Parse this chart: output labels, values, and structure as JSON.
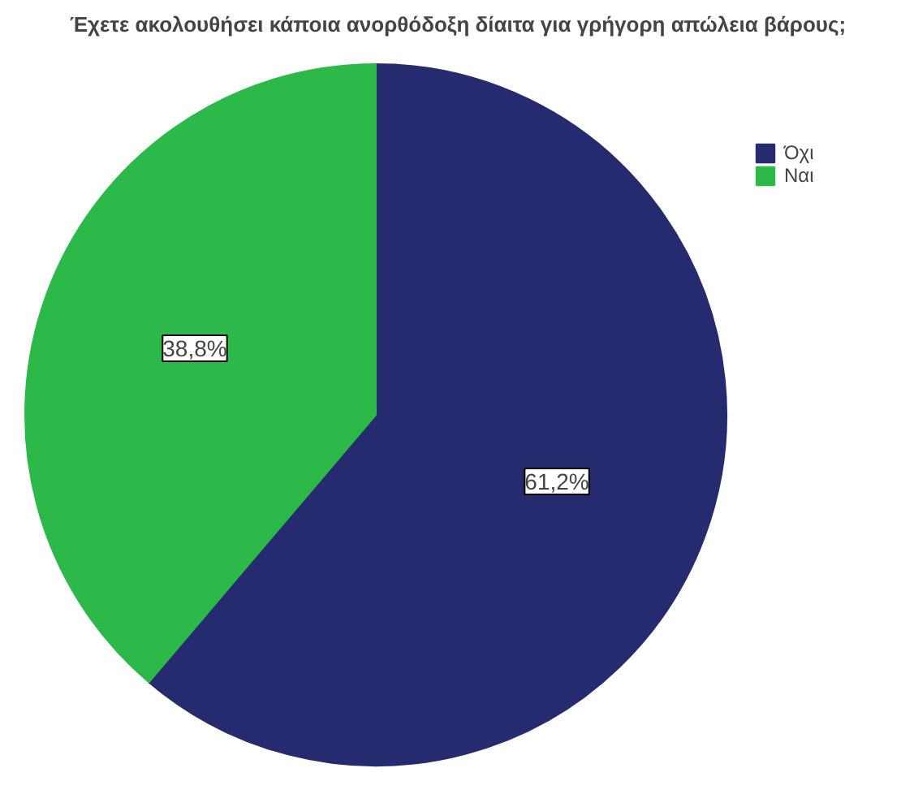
{
  "chart_data": {
    "type": "pie",
    "title": "Έχετε ακολουθήσει κάποια ανορθόδοξη δίαιτα για γρήγορη απώλεια βάρους;",
    "categories": [
      "Όχι",
      "Ναι"
    ],
    "values": [
      61.2,
      38.8
    ],
    "colors": [
      "#262a6e",
      "#2db84a"
    ],
    "value_labels": [
      "61,2%",
      "38,8%"
    ],
    "legend": "top right"
  }
}
